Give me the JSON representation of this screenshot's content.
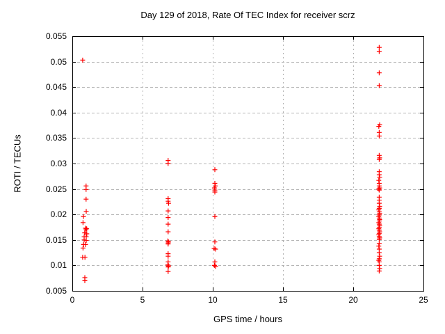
{
  "chart_data": {
    "type": "scatter",
    "title": "Day 129 of 2018, Rate Of TEC Index for receiver scrz",
    "xlabel": "GPS time / hours",
    "ylabel": "ROTI / TECUs",
    "xlim": [
      0,
      25
    ],
    "ylim": [
      0.005,
      0.055
    ],
    "xticks": {
      "values": [
        0,
        5,
        10,
        15,
        20,
        25
      ],
      "labels": [
        "0",
        "5",
        "10",
        "15",
        "20",
        "25"
      ]
    },
    "yticks": {
      "values": [
        0.005,
        0.01,
        0.015,
        0.02,
        0.025,
        0.03,
        0.035,
        0.04,
        0.045,
        0.05,
        0.055
      ],
      "labels": [
        "0.005",
        "0.01",
        "0.015",
        "0.02",
        "0.025",
        "0.03",
        "0.035",
        "0.04",
        "0.045",
        "0.05",
        "0.055"
      ]
    },
    "grid": true,
    "legend_position": "none",
    "marker": {
      "shape": "plus",
      "color": "#ff0000",
      "size": 7
    },
    "colors": {
      "border": "#000000",
      "grid": "#b4b4b4",
      "text": "#000000"
    },
    "series": [
      {
        "name": "ROTI",
        "points": [
          [
            0.74,
            0.0503
          ],
          [
            0.98,
            0.0256
          ],
          [
            0.98,
            0.0249
          ],
          [
            0.98,
            0.023
          ],
          [
            0.99,
            0.0206
          ],
          [
            0.79,
            0.0196
          ],
          [
            0.76,
            0.0184
          ],
          [
            0.93,
            0.0173
          ],
          [
            1.02,
            0.0172
          ],
          [
            0.97,
            0.017
          ],
          [
            0.88,
            0.0164
          ],
          [
            1.03,
            0.0162
          ],
          [
            0.84,
            0.0156
          ],
          [
            0.99,
            0.0156
          ],
          [
            0.84,
            0.015
          ],
          [
            0.99,
            0.0149
          ],
          [
            0.8,
            0.0141
          ],
          [
            0.94,
            0.0141
          ],
          [
            0.76,
            0.0134
          ],
          [
            0.74,
            0.0116
          ],
          [
            0.9,
            0.0116
          ],
          [
            0.89,
            0.0076
          ],
          [
            0.89,
            0.007
          ],
          [
            6.82,
            0.0306
          ],
          [
            6.82,
            0.03
          ],
          [
            6.82,
            0.0231
          ],
          [
            6.82,
            0.0226
          ],
          [
            6.85,
            0.0222
          ],
          [
            6.82,
            0.0207
          ],
          [
            6.82,
            0.0194
          ],
          [
            6.82,
            0.0181
          ],
          [
            6.82,
            0.0166
          ],
          [
            6.8,
            0.0148
          ],
          [
            6.85,
            0.0146
          ],
          [
            6.82,
            0.0144
          ],
          [
            6.82,
            0.0142
          ],
          [
            6.82,
            0.0123
          ],
          [
            6.82,
            0.0118
          ],
          [
            6.82,
            0.0107
          ],
          [
            6.8,
            0.0101
          ],
          [
            6.85,
            0.0099
          ],
          [
            6.82,
            0.0097
          ],
          [
            6.82,
            0.0088
          ],
          [
            10.15,
            0.0288
          ],
          [
            10.15,
            0.0261
          ],
          [
            10.18,
            0.0256
          ],
          [
            10.12,
            0.0252
          ],
          [
            10.15,
            0.0248
          ],
          [
            10.15,
            0.0244
          ],
          [
            10.15,
            0.0196
          ],
          [
            10.15,
            0.0146
          ],
          [
            10.1,
            0.0133
          ],
          [
            10.2,
            0.0132
          ],
          [
            10.15,
            0.0107
          ],
          [
            10.12,
            0.01
          ],
          [
            10.2,
            0.0098
          ],
          [
            21.85,
            0.0528
          ],
          [
            21.85,
            0.052
          ],
          [
            21.85,
            0.0478
          ],
          [
            21.85,
            0.0453
          ],
          [
            21.88,
            0.0376
          ],
          [
            21.82,
            0.0373
          ],
          [
            21.85,
            0.0361
          ],
          [
            21.85,
            0.0354
          ],
          [
            21.85,
            0.0316
          ],
          [
            21.88,
            0.0311
          ],
          [
            21.85,
            0.0308
          ],
          [
            21.85,
            0.0284
          ],
          [
            21.85,
            0.0278
          ],
          [
            21.88,
            0.0273
          ],
          [
            21.82,
            0.0267
          ],
          [
            21.85,
            0.0261
          ],
          [
            21.85,
            0.0256
          ],
          [
            21.88,
            0.0252
          ],
          [
            21.82,
            0.025
          ],
          [
            21.85,
            0.0248
          ],
          [
            21.85,
            0.0234
          ],
          [
            21.85,
            0.0228
          ],
          [
            21.85,
            0.0222
          ],
          [
            21.88,
            0.0216
          ],
          [
            21.85,
            0.0212
          ],
          [
            21.82,
            0.0209
          ],
          [
            21.85,
            0.0205
          ],
          [
            21.88,
            0.0202
          ],
          [
            21.85,
            0.0199
          ],
          [
            21.82,
            0.0196
          ],
          [
            21.85,
            0.0193
          ],
          [
            21.88,
            0.019
          ],
          [
            21.85,
            0.0187
          ],
          [
            21.82,
            0.0184
          ],
          [
            21.85,
            0.0181
          ],
          [
            21.88,
            0.0178
          ],
          [
            21.85,
            0.0175
          ],
          [
            21.82,
            0.0172
          ],
          [
            21.85,
            0.0169
          ],
          [
            21.88,
            0.0166
          ],
          [
            21.85,
            0.0163
          ],
          [
            21.82,
            0.016
          ],
          [
            21.85,
            0.0157
          ],
          [
            21.88,
            0.0154
          ],
          [
            21.85,
            0.0151
          ],
          [
            21.85,
            0.0143
          ],
          [
            21.82,
            0.0138
          ],
          [
            21.85,
            0.0132
          ],
          [
            21.85,
            0.0125
          ],
          [
            21.88,
            0.0118
          ],
          [
            21.85,
            0.0113
          ],
          [
            21.82,
            0.011
          ],
          [
            21.85,
            0.0107
          ],
          [
            21.85,
            0.01
          ],
          [
            21.88,
            0.0094
          ],
          [
            21.85,
            0.0089
          ]
        ]
      }
    ]
  }
}
